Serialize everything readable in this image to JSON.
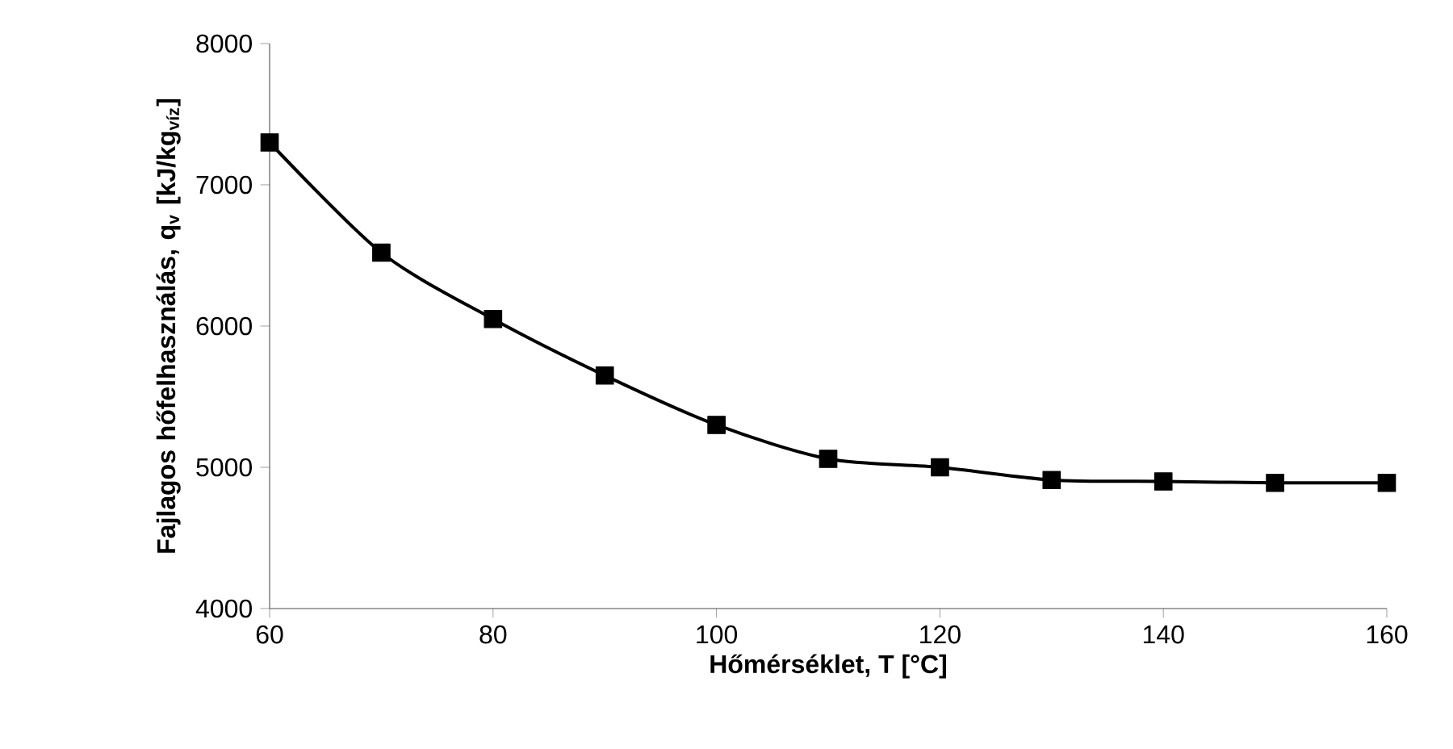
{
  "chart_data": {
    "type": "line",
    "xlabel": "Hőmérséklet, T [°C]",
    "ylabel": "Fajlagos hőfelhasználás, q$_{v}$ [kJ/kg$_{víz}$]",
    "x": [
      60,
      70,
      80,
      90,
      100,
      110,
      120,
      130,
      140,
      150,
      160
    ],
    "series": [
      {
        "color": "#000000",
        "values": [
          7300,
          6520,
          6050,
          5650,
          5300,
          5060,
          5000,
          4910,
          4900,
          4890,
          4890
        ]
      }
    ],
    "xlim": [
      60,
      160
    ],
    "ylim": [
      4000,
      8000
    ],
    "xticks": [
      60,
      80,
      100,
      120,
      140,
      160
    ],
    "yticks": [
      4000,
      5000,
      6000,
      7000,
      8000
    ],
    "grid": false,
    "marker": "square",
    "line_style": "solid"
  }
}
